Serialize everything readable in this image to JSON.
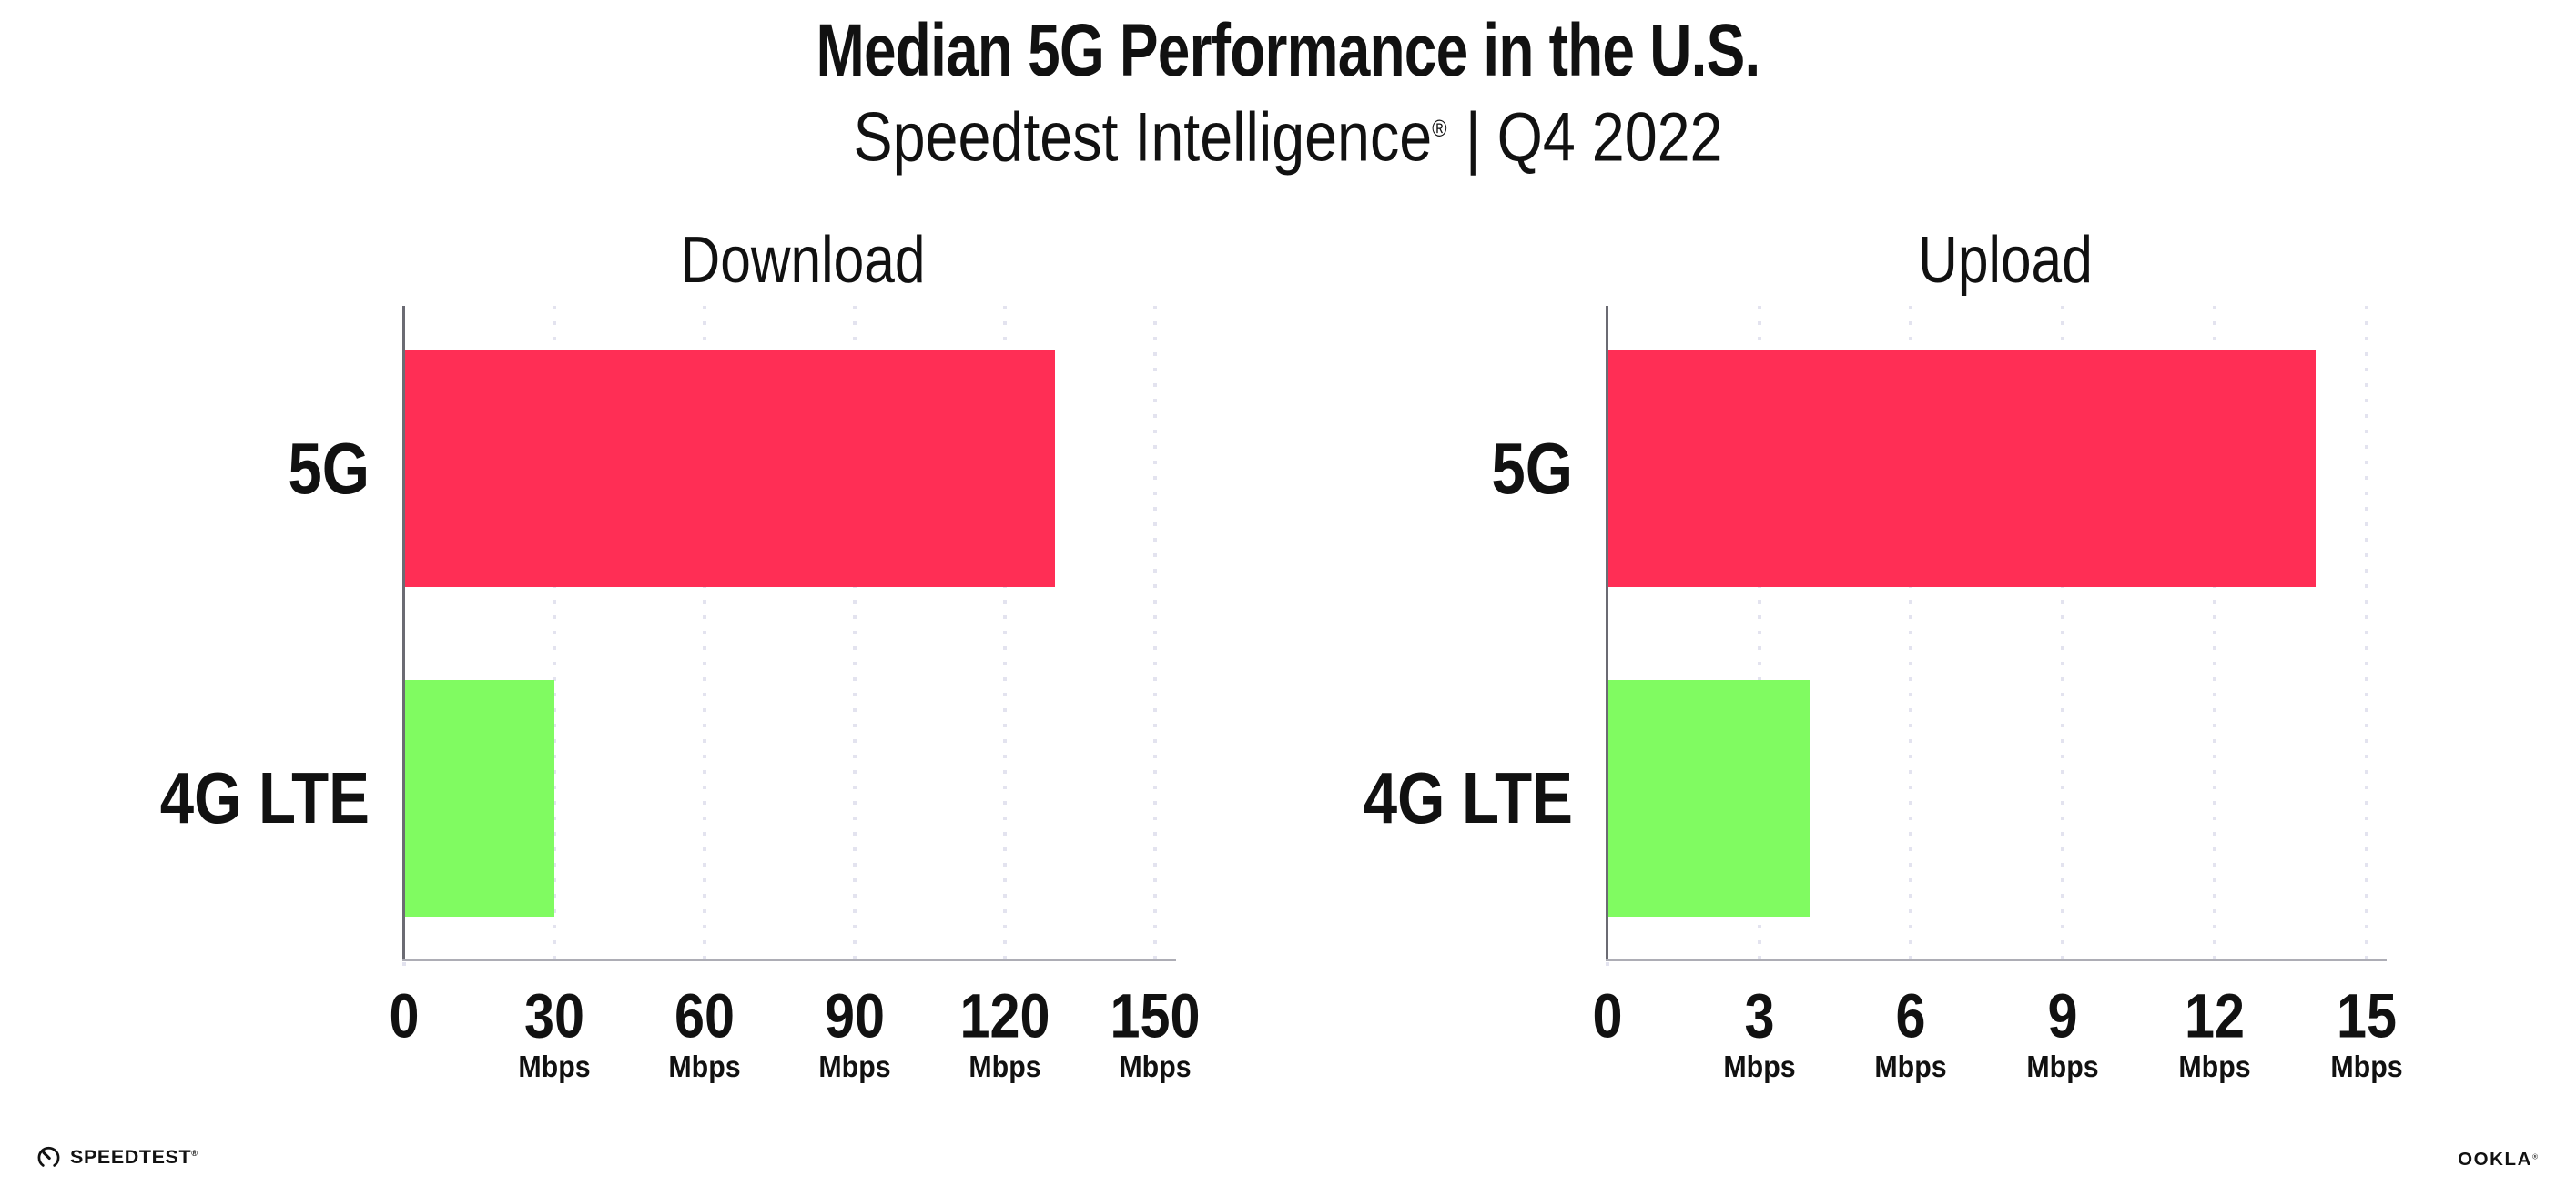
{
  "header": {
    "title": "Median 5G Performance in the U.S.",
    "subtitle_brand": "Speedtest Intelligence",
    "subtitle_reg": "®",
    "subtitle_rest": "| Q4 2022"
  },
  "chart_data": [
    {
      "type": "bar",
      "orientation": "horizontal",
      "title": "Download",
      "categories": [
        "5G",
        "4G LTE"
      ],
      "values": [
        130,
        30
      ],
      "value_unit": "Mbps",
      "xlim": [
        0,
        150
      ],
      "xticks": [
        0,
        30,
        60,
        90,
        120,
        150
      ],
      "tick_unit": "Mbps",
      "bar_colors": [
        "#FF2E55",
        "#80FB61"
      ],
      "grid": "dotted-vertical-gridlines",
      "legend": "none"
    },
    {
      "type": "bar",
      "orientation": "horizontal",
      "title": "Upload",
      "categories": [
        "5G",
        "4G LTE"
      ],
      "values": [
        14,
        4
      ],
      "value_unit": "Mbps",
      "xlim": [
        0,
        15
      ],
      "xticks": [
        0,
        3,
        6,
        9,
        12,
        15
      ],
      "tick_unit": "Mbps",
      "bar_colors": [
        "#FF2E55",
        "#80FB61"
      ],
      "grid": "dotted-vertical-gridlines",
      "legend": "none"
    }
  ],
  "footer": {
    "speedtest_wordmark": "SPEEDTEST",
    "speedtest_reg": "®",
    "ookla_wordmark": "OOKLA",
    "ookla_reg": "®"
  },
  "colors": {
    "bar_5g": "#FF2E55",
    "bar_4g_lte": "#80FB61",
    "text": "#111111",
    "x_axis_line": "#ADADB5",
    "y_axis_line": "#6B6B73",
    "gridline_dots": "#E3E3EF",
    "background": "#FFFFFF"
  }
}
